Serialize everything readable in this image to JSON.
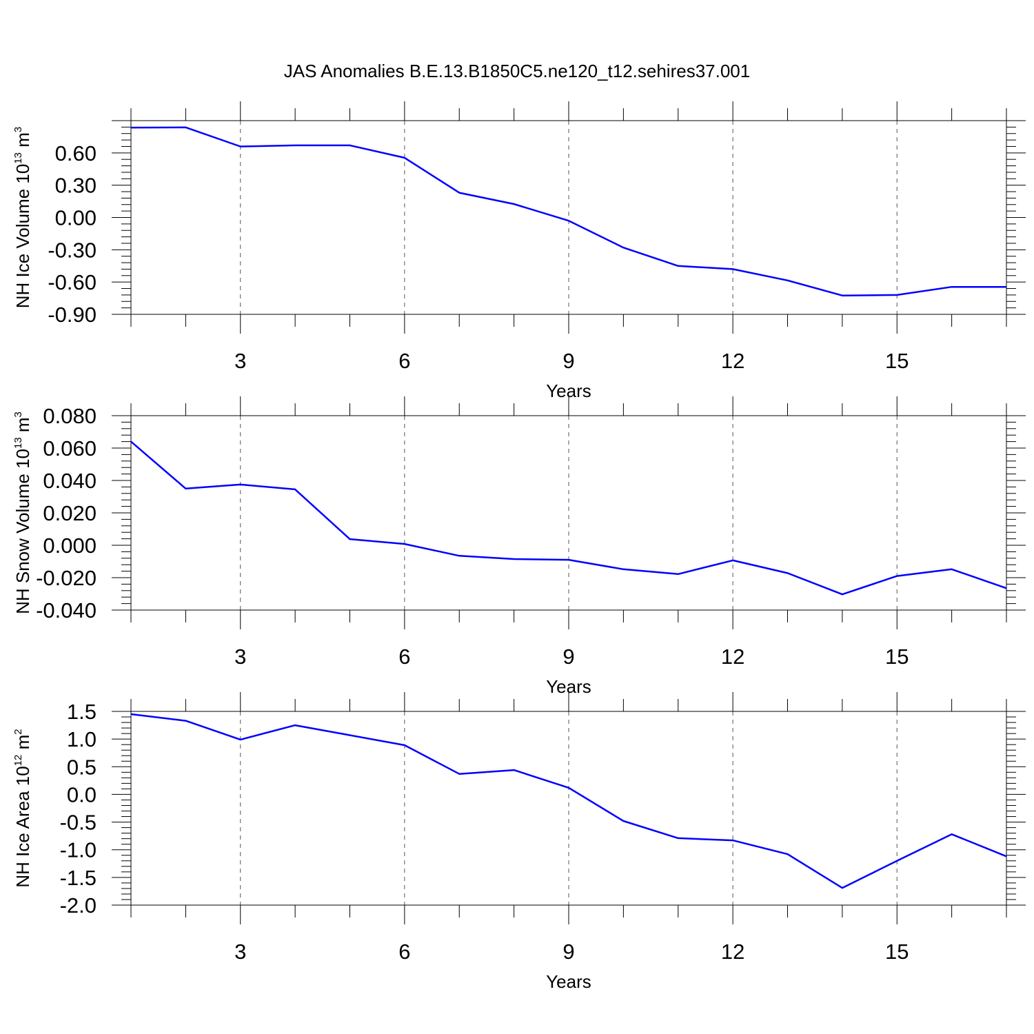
{
  "title": "JAS Anomalies B.E.13.B1850C5.ne120_t12.sehires37.001",
  "line_color": "#0000ff",
  "chart_data": [
    {
      "type": "line",
      "ylabel": {
        "main": "NH Ice Volume 10",
        "exp": "13",
        "unit": " m",
        "unit_exp": "3"
      },
      "xlabel": "Years",
      "xlim": [
        1,
        17
      ],
      "ylim": [
        -0.9,
        0.9
      ],
      "xticks": [
        3,
        6,
        9,
        12,
        15
      ],
      "xticklabels": [
        "3",
        "6",
        "9",
        "12",
        "15"
      ],
      "yticks": [
        -0.9,
        -0.6,
        -0.3,
        0.0,
        0.3,
        0.6
      ],
      "yticklabels": [
        "-0.90",
        "-0.60",
        "-0.30",
        "0.00",
        "0.30",
        "0.60"
      ],
      "x": [
        1,
        2,
        3,
        4,
        5,
        6,
        7,
        8,
        9,
        10,
        11,
        12,
        13,
        14,
        15,
        16,
        17
      ],
      "series": [
        {
          "values": [
            0.835,
            0.837,
            0.66,
            0.67,
            0.67,
            0.555,
            0.23,
            0.125,
            -0.03,
            -0.28,
            -0.45,
            -0.48,
            -0.585,
            -0.725,
            -0.72,
            -0.645,
            -0.645
          ]
        }
      ]
    },
    {
      "type": "line",
      "ylabel": {
        "main": "NH Snow Volume 10",
        "exp": "13",
        "unit": " m",
        "unit_exp": "3"
      },
      "xlabel": "Years",
      "xlim": [
        1,
        17
      ],
      "ylim": [
        -0.04,
        0.08
      ],
      "xticks": [
        3,
        6,
        9,
        12,
        15
      ],
      "xticklabels": [
        "3",
        "6",
        "9",
        "12",
        "15"
      ],
      "yticks": [
        -0.04,
        -0.02,
        0.0,
        0.02,
        0.04,
        0.06,
        0.08
      ],
      "yticklabels": [
        "-0.040",
        "-0.020",
        "0.000",
        "0.020",
        "0.040",
        "0.060",
        "0.080"
      ],
      "x": [
        1,
        2,
        3,
        4,
        5,
        6,
        7,
        8,
        9,
        10,
        11,
        12,
        13,
        14,
        15,
        16,
        17
      ],
      "series": [
        {
          "values": [
            0.064,
            0.035,
            0.0375,
            0.0345,
            0.0038,
            0.0008,
            -0.0065,
            -0.0085,
            -0.009,
            -0.0148,
            -0.0178,
            -0.0093,
            -0.0172,
            -0.0303,
            -0.019,
            -0.0148,
            -0.0265
          ]
        }
      ]
    },
    {
      "type": "line",
      "ylabel": {
        "main": "NH Ice Area 10",
        "exp": "12",
        "unit": " m",
        "unit_exp": "2"
      },
      "xlabel": "Years",
      "xlim": [
        1,
        17
      ],
      "ylim": [
        -2.0,
        1.5
      ],
      "xticks": [
        3,
        6,
        9,
        12,
        15
      ],
      "xticklabels": [
        "3",
        "6",
        "9",
        "12",
        "15"
      ],
      "yticks": [
        -2.0,
        -1.5,
        -1.0,
        -0.5,
        0.0,
        0.5,
        1.0,
        1.5
      ],
      "yticklabels": [
        "-2.0",
        "-1.5",
        "-1.0",
        "-0.5",
        "0.0",
        "0.5",
        "1.0",
        "1.5"
      ],
      "x": [
        1,
        2,
        3,
        4,
        5,
        6,
        7,
        8,
        9,
        10,
        11,
        12,
        13,
        14,
        15,
        16,
        17
      ],
      "series": [
        {
          "values": [
            1.45,
            1.33,
            0.99,
            1.25,
            1.07,
            0.89,
            0.37,
            0.44,
            0.12,
            -0.48,
            -0.79,
            -0.83,
            -1.08,
            -1.69,
            -1.2,
            -0.72,
            -1.12
          ]
        }
      ]
    }
  ]
}
